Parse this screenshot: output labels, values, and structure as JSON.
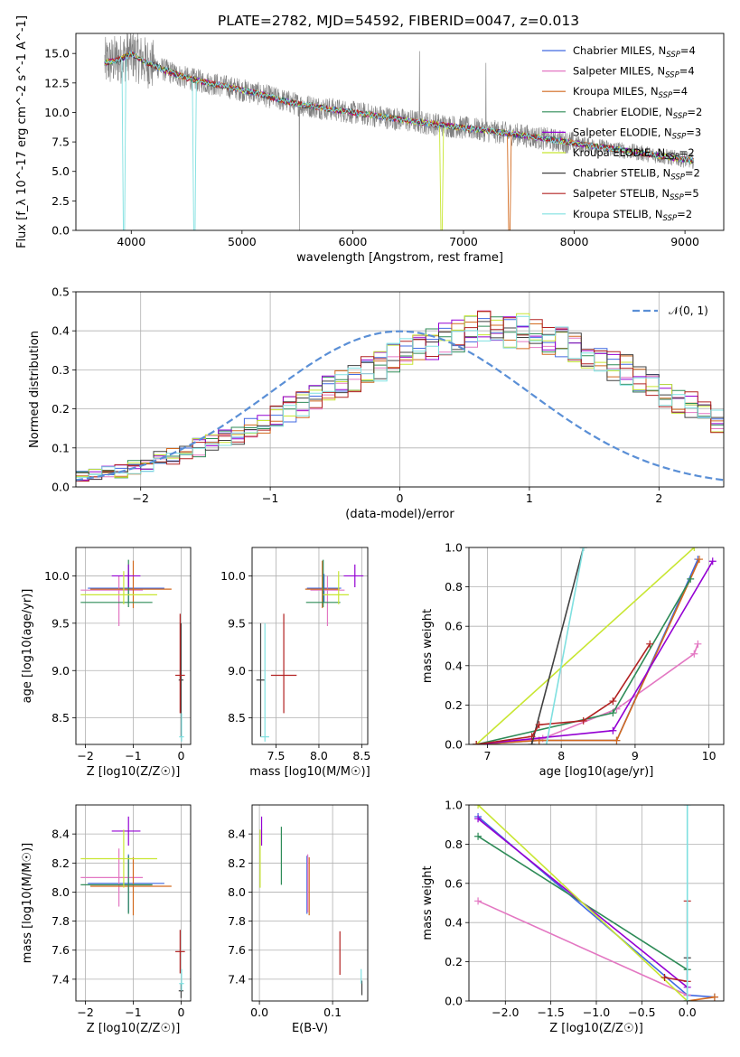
{
  "figure_title": "PLATE=2782, MJD=54592, FIBERID=0047, z=0.013",
  "legend": {
    "entries": [
      {
        "label": "Chabrier MILES, N",
        "sub": "SSP",
        "tail": "=4",
        "color": "#4169e1"
      },
      {
        "label": "Salpeter MILES, N",
        "sub": "SSP",
        "tail": "=4",
        "color": "#e377c2"
      },
      {
        "label": "Kroupa MILES, N",
        "sub": "SSP",
        "tail": "=4",
        "color": "#d2691e"
      },
      {
        "label": "Chabrier ELODIE, N",
        "sub": "SSP",
        "tail": "=2",
        "color": "#2e8b57"
      },
      {
        "label": "Salpeter ELODIE, N",
        "sub": "SSP",
        "tail": "=3",
        "color": "#9400d3"
      },
      {
        "label": "Kroupa ELODIE, N",
        "sub": "SSP",
        "tail": "=2",
        "color": "#c8e632"
      },
      {
        "label": "Chabrier STELIB, N",
        "sub": "SSP",
        "tail": "=2",
        "color": "#404040"
      },
      {
        "label": "Salpeter STELIB, N",
        "sub": "SSP",
        "tail": "=5",
        "color": "#b22222"
      },
      {
        "label": "Kroupa STELIB, N",
        "sub": "SSP",
        "tail": "=2",
        "color": "#7fe0e0"
      }
    ]
  },
  "chart_data": [
    {
      "id": "spectrum",
      "type": "line",
      "title": "PLATE=2782, MJD=54592, FIBERID=0047, z=0.013",
      "xlabel": "wavelength [Angstrom, rest frame]",
      "ylabel": "Flux [f_λ 10^-17 erg cm^-2 s^-1 A^-1]",
      "xlim": [
        3500,
        9350
      ],
      "ylim": [
        0,
        16.7
      ],
      "xticks": [
        4000,
        5000,
        6000,
        7000,
        8000,
        9000
      ],
      "yticks": [
        0.0,
        2.5,
        5.0,
        7.5,
        10.0,
        12.5,
        15.0
      ],
      "grid": false,
      "legend_position": "top-right",
      "observed_spectrum_color": "#808080",
      "model_continuum": {
        "x": [
          3760,
          3900,
          4000,
          4100,
          4300,
          4500,
          4800,
          5100,
          5500,
          6000,
          6500,
          7000,
          7500,
          8000,
          8500,
          9000,
          9080
        ],
        "y": [
          14.2,
          14.5,
          15.0,
          14.4,
          13.6,
          12.9,
          12.3,
          11.7,
          10.7,
          10.0,
          9.3,
          8.7,
          8.1,
          7.4,
          6.7,
          6.0,
          5.9
        ]
      }
    },
    {
      "id": "residuals",
      "type": "step",
      "xlabel": "(data-model)/error",
      "ylabel": "Normed distribution",
      "xlim": [
        -2.5,
        2.5
      ],
      "ylim": [
        0,
        0.5
      ],
      "xticks": [
        -2,
        -1,
        0,
        1,
        2
      ],
      "yticks": [
        0.0,
        0.1,
        0.2,
        0.3,
        0.4,
        0.5
      ],
      "grid": true,
      "legend": {
        "label": "𝒩(0, 1)",
        "color": "#5a8fd6",
        "position": "top-right"
      },
      "bin_width": 0.1,
      "bin_start": -2.5,
      "histogram_mean": [
        0.03,
        0.03,
        0.04,
        0.04,
        0.05,
        0.06,
        0.07,
        0.08,
        0.09,
        0.1,
        0.11,
        0.12,
        0.13,
        0.15,
        0.16,
        0.18,
        0.2,
        0.21,
        0.23,
        0.25,
        0.26,
        0.28,
        0.3,
        0.31,
        0.33,
        0.34,
        0.36,
        0.37,
        0.38,
        0.39,
        0.4,
        0.41,
        0.41,
        0.4,
        0.4,
        0.39,
        0.38,
        0.37,
        0.36,
        0.34,
        0.33,
        0.31,
        0.3,
        0.28,
        0.26,
        0.24,
        0.22,
        0.21,
        0.19,
        0.17,
        0.15,
        0.14,
        0.12,
        0.11,
        0.1,
        0.09,
        0.08,
        0.07,
        0.06,
        0.05,
        0.05,
        0.04,
        0.04,
        0.03,
        0.03,
        0.03,
        0.02,
        0.02,
        0.02,
        0.02
      ]
    },
    {
      "id": "age_vs_Z",
      "type": "scatter-errorbar",
      "xlabel": "Z [log10(Z/Z☉)]",
      "ylabel": "age  [log10(age/yr)]",
      "xlim": [
        -2.2,
        0.2
      ],
      "ylim": [
        8.22,
        10.3
      ],
      "xticks": [
        -2,
        -1,
        0
      ],
      "yticks": [
        8.5,
        9.0,
        9.5,
        10.0
      ],
      "grid": true,
      "points": [
        {
          "color": "#4169e1",
          "x": -1.1,
          "xerr": [
            0.85,
            0.75
          ],
          "y": 9.87,
          "yerr": [
            0.15,
            0.15
          ]
        },
        {
          "color": "#e377c2",
          "x": -1.3,
          "xerr": [
            0.8,
            0.5
          ],
          "y": 9.85,
          "yerr": [
            0.38,
            0.15
          ]
        },
        {
          "color": "#d2691e",
          "x": -1.0,
          "xerr": [
            0.9,
            0.8
          ],
          "y": 9.86,
          "yerr": [
            0.2,
            0.3
          ]
        },
        {
          "color": "#2e8b57",
          "x": -1.1,
          "xerr": [
            1.0,
            0.5
          ],
          "y": 9.72,
          "yerr": [
            0.05,
            0.45
          ]
        },
        {
          "color": "#9400d3",
          "x": -1.1,
          "xerr": [
            0.35,
            0.25
          ],
          "y": 10.0,
          "yerr": [
            0.12,
            0.12
          ]
        },
        {
          "color": "#c8e632",
          "x": -1.2,
          "xerr": [
            0.9,
            0.7
          ],
          "y": 9.8,
          "yerr": [
            0.1,
            0.25
          ]
        },
        {
          "color": "#404040",
          "x": 0.0,
          "xerr": [
            0.05,
            0.05
          ],
          "y": 8.9,
          "yerr": [
            0.6,
            0.6
          ]
        },
        {
          "color": "#b22222",
          "x": -0.02,
          "xerr": [
            0.1,
            0.1
          ],
          "y": 8.95,
          "yerr": [
            0.4,
            0.65
          ]
        },
        {
          "color": "#7fe0e0",
          "x": 0.01,
          "xerr": [
            0.05,
            0.05
          ],
          "y": 8.3,
          "yerr": [
            0.05,
            0.25
          ]
        }
      ]
    },
    {
      "id": "age_vs_mass",
      "type": "scatter-errorbar",
      "xlabel": "mass [log10(M/M☉)]",
      "ylabel": "",
      "xlim": [
        7.22,
        8.57
      ],
      "ylim": [
        8.22,
        10.3
      ],
      "xticks": [
        7.5,
        8.0,
        8.5
      ],
      "yticks": [
        8.5,
        9.0,
        9.5,
        10.0
      ],
      "grid": true,
      "points": [
        {
          "color": "#4169e1",
          "x": 8.06,
          "xerr": [
            0.2,
            0.2
          ],
          "y": 9.87,
          "yerr": [
            0.15,
            0.15
          ]
        },
        {
          "color": "#e377c2",
          "x": 8.1,
          "xerr": [
            0.2,
            0.2
          ],
          "y": 9.85,
          "yerr": [
            0.38,
            0.15
          ]
        },
        {
          "color": "#d2691e",
          "x": 8.04,
          "xerr": [
            0.2,
            0.2
          ],
          "y": 9.86,
          "yerr": [
            0.2,
            0.3
          ]
        },
        {
          "color": "#2e8b57",
          "x": 8.05,
          "xerr": [
            0.2,
            0.2
          ],
          "y": 9.72,
          "yerr": [
            0.05,
            0.45
          ]
        },
        {
          "color": "#9400d3",
          "x": 8.42,
          "xerr": [
            0.13,
            0.1
          ],
          "y": 10.0,
          "yerr": [
            0.12,
            0.12
          ]
        },
        {
          "color": "#c8e632",
          "x": 8.23,
          "xerr": [
            0.18,
            0.12
          ],
          "y": 9.8,
          "yerr": [
            0.1,
            0.25
          ]
        },
        {
          "color": "#404040",
          "x": 7.32,
          "xerr": [
            0.05,
            0.05
          ],
          "y": 8.9,
          "yerr": [
            0.6,
            0.6
          ]
        },
        {
          "color": "#b22222",
          "x": 7.59,
          "xerr": [
            0.15,
            0.15
          ],
          "y": 8.95,
          "yerr": [
            0.4,
            0.65
          ]
        },
        {
          "color": "#7fe0e0",
          "x": 7.37,
          "xerr": [
            0.05,
            0.05
          ],
          "y": 8.3,
          "yerr": [
            0.05,
            1.2
          ]
        }
      ]
    },
    {
      "id": "mass_weight_vs_age",
      "type": "line",
      "xlabel": "age  [log10(age/yr)]",
      "ylabel": "mass weight",
      "xlim": [
        6.75,
        10.2
      ],
      "ylim": [
        0,
        1.0
      ],
      "xticks": [
        7,
        8,
        9,
        10
      ],
      "yticks": [
        0.0,
        0.2,
        0.4,
        0.6,
        0.8,
        1.0
      ],
      "grid": true,
      "series": [
        {
          "color": "#4169e1",
          "x": [
            6.85,
            7.7,
            8.75,
            9.85
          ],
          "y": [
            0.0,
            0.02,
            0.02,
            0.94
          ]
        },
        {
          "color": "#e377c2",
          "x": [
            6.85,
            7.75,
            8.75,
            9.8,
            9.85
          ],
          "y": [
            0.0,
            0.03,
            0.18,
            0.46,
            0.51
          ]
        },
        {
          "color": "#d2691e",
          "x": [
            6.85,
            7.7,
            8.75,
            9.87
          ],
          "y": [
            0.0,
            0.02,
            0.02,
            0.94
          ]
        },
        {
          "color": "#2e8b57",
          "x": [
            6.85,
            8.7,
            9.75
          ],
          "y": [
            0.0,
            0.16,
            0.84
          ]
        },
        {
          "color": "#9400d3",
          "x": [
            6.85,
            8.7,
            10.05
          ],
          "y": [
            0.0,
            0.07,
            0.93
          ]
        },
        {
          "color": "#c8e632",
          "x": [
            6.85,
            9.8
          ],
          "y": [
            0.0,
            1.0
          ]
        },
        {
          "color": "#404040",
          "x": [
            7.6,
            8.3
          ],
          "y": [
            0.0,
            1.0
          ]
        },
        {
          "color": "#b22222",
          "x": [
            6.85,
            7.6,
            7.7,
            8.3,
            8.7,
            9.2
          ],
          "y": [
            0.0,
            0.04,
            0.1,
            0.12,
            0.22,
            0.51
          ]
        },
        {
          "color": "#7fe0e0",
          "x": [
            7.8,
            8.3
          ],
          "y": [
            0.0,
            1.0
          ]
        }
      ]
    },
    {
      "id": "mass_vs_Z",
      "type": "scatter-errorbar",
      "xlabel": "Z [log10(Z/Z☉)]",
      "ylabel": "mass [log10(M/M☉)]",
      "xlim": [
        -2.2,
        0.2
      ],
      "ylim": [
        7.25,
        8.6
      ],
      "xticks": [
        -2,
        -1,
        0
      ],
      "yticks": [
        7.4,
        7.6,
        7.8,
        8.0,
        8.2,
        8.4
      ],
      "grid": true,
      "points": [
        {
          "color": "#4169e1",
          "x": -1.1,
          "xerr": [
            0.85,
            0.75
          ],
          "y": 8.06,
          "yerr": [
            0.2,
            0.2
          ]
        },
        {
          "color": "#e377c2",
          "x": -1.3,
          "xerr": [
            0.8,
            0.5
          ],
          "y": 8.1,
          "yerr": [
            0.2,
            0.2
          ]
        },
        {
          "color": "#d2691e",
          "x": -1.0,
          "xerr": [
            0.9,
            0.8
          ],
          "y": 8.04,
          "yerr": [
            0.2,
            0.2
          ]
        },
        {
          "color": "#2e8b57",
          "x": -1.1,
          "xerr": [
            1.0,
            0.5
          ],
          "y": 8.05,
          "yerr": [
            0.2,
            0.2
          ]
        },
        {
          "color": "#9400d3",
          "x": -1.1,
          "xerr": [
            0.35,
            0.25
          ],
          "y": 8.42,
          "yerr": [
            0.1,
            0.1
          ]
        },
        {
          "color": "#c8e632",
          "x": -1.2,
          "xerr": [
            0.9,
            0.7
          ],
          "y": 8.23,
          "yerr": [
            0.2,
            0.2
          ]
        },
        {
          "color": "#404040",
          "x": 0.0,
          "xerr": [
            0.05,
            0.05
          ],
          "y": 7.32,
          "yerr": [
            0.05,
            0.05
          ]
        },
        {
          "color": "#b22222",
          "x": -0.02,
          "xerr": [
            0.1,
            0.1
          ],
          "y": 7.59,
          "yerr": [
            0.15,
            0.15
          ]
        },
        {
          "color": "#7fe0e0",
          "x": 0.01,
          "xerr": [
            0.05,
            0.05
          ],
          "y": 7.37,
          "yerr": [
            0.05,
            0.1
          ]
        }
      ]
    },
    {
      "id": "mass_vs_EBV",
      "type": "errorbar",
      "xlabel": "E(B-V)",
      "ylabel": "",
      "xlim": [
        -0.01,
        0.148
      ],
      "ylim": [
        7.25,
        8.6
      ],
      "xticks": [
        0.0,
        0.1
      ],
      "yticks": [
        7.4,
        7.6,
        7.8,
        8.0,
        8.2,
        8.4
      ],
      "grid": true,
      "points": [
        {
          "color": "#4169e1",
          "x": 0.065,
          "y": 8.05,
          "yerr": [
            0.2,
            0.2
          ]
        },
        {
          "color": "#e377c2",
          "x": 0.066,
          "y": 8.06,
          "yerr": [
            0.2,
            0.2
          ]
        },
        {
          "color": "#d2691e",
          "x": 0.068,
          "y": 8.04,
          "yerr": [
            0.2,
            0.2
          ]
        },
        {
          "color": "#2e8b57",
          "x": 0.03,
          "y": 8.25,
          "yerr": [
            0.2,
            0.2
          ]
        },
        {
          "color": "#9400d3",
          "x": 0.003,
          "y": 8.42,
          "yerr": [
            0.1,
            0.1
          ]
        },
        {
          "color": "#c8e632",
          "x": 0.001,
          "y": 8.23,
          "yerr": [
            0.2,
            0.2
          ]
        },
        {
          "color": "#404040",
          "x": 0.14,
          "y": 7.34,
          "yerr": [
            0.05,
            0.05
          ]
        },
        {
          "color": "#b22222",
          "x": 0.11,
          "y": 7.58,
          "yerr": [
            0.15,
            0.15
          ]
        },
        {
          "color": "#7fe0e0",
          "x": 0.139,
          "y": 7.42,
          "yerr": [
            0.05,
            0.05
          ]
        }
      ]
    },
    {
      "id": "mass_weight_vs_Z",
      "type": "line",
      "xlabel": "Z [log10(Z/Z☉)]",
      "ylabel": "mass weight",
      "xlim": [
        -2.4,
        0.4
      ],
      "ylim": [
        0,
        1.0
      ],
      "xticks": [
        -2.0,
        -1.5,
        -1.0,
        -0.5,
        0.0
      ],
      "yticks": [
        0.0,
        0.2,
        0.4,
        0.6,
        0.8,
        1.0
      ],
      "grid": true,
      "series": [
        {
          "color": "#4169e1",
          "x": [
            -2.3,
            0.0,
            0.3
          ],
          "y": [
            0.94,
            0.03,
            0.02
          ]
        },
        {
          "color": "#e377c2",
          "x": [
            -2.3,
            0.0
          ],
          "y": [
            0.51,
            0.03
          ]
        },
        {
          "color": "#d2691e",
          "x": [
            0.0,
            0.3
          ],
          "y": [
            0.0,
            0.02
          ]
        },
        {
          "color": "#2e8b57",
          "x": [
            -2.3,
            0.0
          ],
          "y": [
            0.84,
            0.16
          ]
        },
        {
          "color": "#9400d3",
          "x": [
            -2.3,
            0.0
          ],
          "y": [
            0.93,
            0.07
          ]
        },
        {
          "color": "#c8e632",
          "x": [
            -2.3,
            0.0
          ],
          "y": [
            1.0,
            0.0
          ]
        },
        {
          "color": "#404040",
          "x": [
            0.0,
            0.0
          ],
          "y": [
            0.0,
            0.22
          ]
        },
        {
          "color": "#b22222",
          "x": [
            -0.25,
            0.0,
            0.0
          ],
          "y": [
            0.12,
            0.1,
            0.51
          ]
        },
        {
          "color": "#7fe0e0",
          "x": [
            0.0,
            0.0
          ],
          "y": [
            0.0,
            1.0
          ]
        }
      ]
    }
  ]
}
